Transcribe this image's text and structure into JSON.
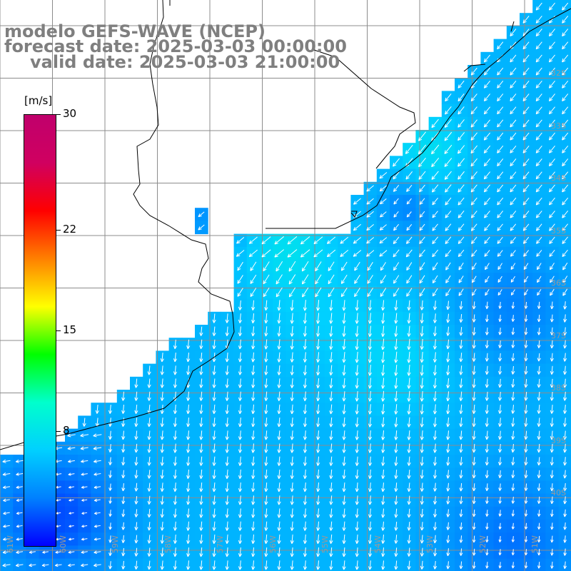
{
  "title": {
    "model": "modelo GEFS-WAVE (NCEP)",
    "forecast": "forecast date: 2025-03-03 00:00:00",
    "valid": "valid date: 2025-03-03 21:00:00"
  },
  "colorbar": {
    "unit": "[m/s]",
    "min": 0,
    "max": 30,
    "ticks": [
      "30",
      "22",
      "15",
      "8"
    ],
    "tick_values": [
      30,
      22,
      15,
      8
    ],
    "colors": [
      "#0000ff",
      "#0080ff",
      "#00d0ff",
      "#00ffcc",
      "#00ff00",
      "#ffff00",
      "#ff8000",
      "#ff0000",
      "#d00060",
      "#c0006c"
    ]
  },
  "lon_labels": [
    "61W",
    "60W",
    "59W",
    "58W",
    "57W",
    "56W",
    "55W",
    "54W",
    "53W",
    "52W",
    "51W"
  ],
  "lat_labels": [
    "32S",
    "33S",
    "34S",
    "35S",
    "36S",
    "37S",
    "38S",
    "39S",
    "40S"
  ],
  "map": {
    "land_color": "#ffffff",
    "grid_color": "#8c8c8c",
    "coast_color": "#000000",
    "arrow_color": "#ffffff",
    "wind_direction": "from north / northeast"
  }
}
